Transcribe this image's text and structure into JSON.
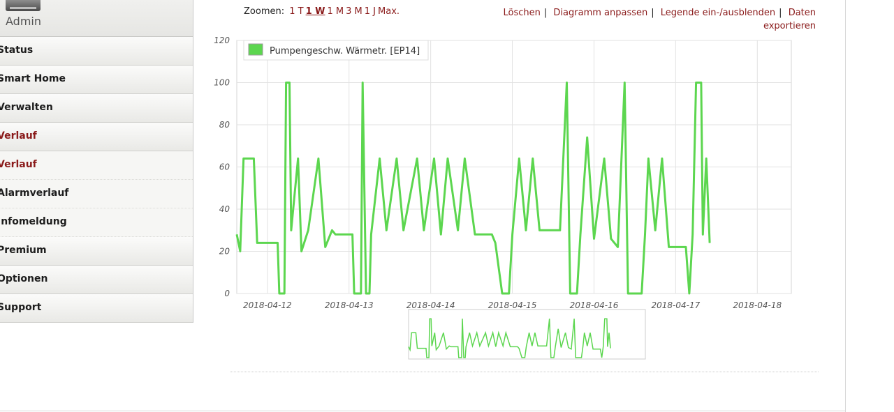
{
  "user": {
    "name": "Admin"
  },
  "nav": {
    "items": [
      {
        "label": "Status",
        "type": "main",
        "active": false
      },
      {
        "label": "Smart Home",
        "type": "main",
        "active": false
      },
      {
        "label": "Verwalten",
        "type": "main",
        "active": false
      },
      {
        "label": "Verlauf",
        "type": "main",
        "active": true
      },
      {
        "label": "Verlauf",
        "type": "sub",
        "active": true
      },
      {
        "label": "Alarmverlauf",
        "type": "sub",
        "active": false
      },
      {
        "label": "Infomeldung",
        "type": "sub",
        "active": false
      },
      {
        "label": "Premium",
        "type": "main",
        "active": false
      },
      {
        "label": "Optionen",
        "type": "main",
        "active": false
      },
      {
        "label": "Support",
        "type": "main",
        "active": false
      }
    ]
  },
  "zoom": {
    "label": "Zoomen:",
    "options": [
      "1 T",
      "1 W",
      "1 M",
      "3 M",
      "1 J",
      "Max."
    ],
    "selected": "1 W"
  },
  "actions": {
    "delete": "Löschen",
    "adjust": "Diagramm anpassen",
    "legend_toggle": "Legende ein-/ausblenden",
    "export": "Daten exportieren"
  },
  "colors": {
    "series": "#5cd64f",
    "link": "#8a1a1a"
  },
  "chart_data": {
    "type": "line",
    "title": "",
    "xlabel": "",
    "ylabel": "",
    "ylim": [
      0,
      120
    ],
    "yticks": [
      0,
      20,
      40,
      60,
      80,
      100,
      120
    ],
    "xlim": [
      "2018-04-11 15:00",
      "2018-04-18 10:00"
    ],
    "xticks": [
      "2018-04-12",
      "2018-04-13",
      "2018-04-14",
      "2018-04-15",
      "2018-04-16",
      "2018-04-17",
      "2018-04-18"
    ],
    "grid": true,
    "legend": "top-left",
    "series": [
      {
        "name": "Pumpengeschw. Wärmetr. [EP14]",
        "points": [
          [
            "2018-04-11 15:00",
            28
          ],
          [
            "2018-04-11 16:00",
            20
          ],
          [
            "2018-04-11 17:00",
            64
          ],
          [
            "2018-04-11 20:00",
            64
          ],
          [
            "2018-04-11 21:00",
            24
          ],
          [
            "2018-04-12 03:00",
            24
          ],
          [
            "2018-04-12 03:30",
            0
          ],
          [
            "2018-04-12 05:00",
            0
          ],
          [
            "2018-04-12 05:30",
            100
          ],
          [
            "2018-04-12 06:30",
            100
          ],
          [
            "2018-04-12 07:00",
            30
          ],
          [
            "2018-04-12 09:00",
            64
          ],
          [
            "2018-04-12 10:00",
            20
          ],
          [
            "2018-04-12 12:00",
            30
          ],
          [
            "2018-04-12 15:00",
            64
          ],
          [
            "2018-04-12 17:00",
            22
          ],
          [
            "2018-04-12 19:00",
            30
          ],
          [
            "2018-04-12 20:00",
            28
          ],
          [
            "2018-04-13 01:00",
            28
          ],
          [
            "2018-04-13 01:30",
            0
          ],
          [
            "2018-04-13 03:30",
            0
          ],
          [
            "2018-04-13 04:00",
            100
          ],
          [
            "2018-04-13 05:00",
            0
          ],
          [
            "2018-04-13 06:00",
            0
          ],
          [
            "2018-04-13 06:30",
            28
          ],
          [
            "2018-04-13 09:00",
            64
          ],
          [
            "2018-04-13 11:00",
            30
          ],
          [
            "2018-04-13 14:00",
            64
          ],
          [
            "2018-04-13 16:00",
            30
          ],
          [
            "2018-04-13 20:00",
            64
          ],
          [
            "2018-04-13 22:00",
            30
          ],
          [
            "2018-04-14 01:00",
            64
          ],
          [
            "2018-04-14 03:00",
            28
          ],
          [
            "2018-04-14 05:00",
            64
          ],
          [
            "2018-04-14 08:00",
            30
          ],
          [
            "2018-04-14 10:00",
            64
          ],
          [
            "2018-04-14 13:00",
            28
          ],
          [
            "2018-04-14 18:00",
            28
          ],
          [
            "2018-04-14 19:00",
            24
          ],
          [
            "2018-04-14 21:00",
            0
          ],
          [
            "2018-04-14 23:00",
            0
          ],
          [
            "2018-04-15 00:00",
            28
          ],
          [
            "2018-04-15 02:00",
            64
          ],
          [
            "2018-04-15 04:00",
            30
          ],
          [
            "2018-04-15 06:00",
            64
          ],
          [
            "2018-04-15 08:00",
            30
          ],
          [
            "2018-04-15 14:00",
            30
          ],
          [
            "2018-04-15 16:00",
            100
          ],
          [
            "2018-04-15 17:00",
            0
          ],
          [
            "2018-04-15 19:00",
            0
          ],
          [
            "2018-04-15 20:00",
            28
          ],
          [
            "2018-04-15 22:00",
            74
          ],
          [
            "2018-04-16 00:00",
            26
          ],
          [
            "2018-04-16 03:00",
            64
          ],
          [
            "2018-04-16 05:00",
            26
          ],
          [
            "2018-04-16 07:00",
            22
          ],
          [
            "2018-04-16 09:00",
            100
          ],
          [
            "2018-04-16 10:00",
            0
          ],
          [
            "2018-04-16 14:00",
            0
          ],
          [
            "2018-04-16 15:00",
            28
          ],
          [
            "2018-04-16 16:00",
            64
          ],
          [
            "2018-04-16 18:00",
            30
          ],
          [
            "2018-04-16 20:00",
            64
          ],
          [
            "2018-04-16 22:00",
            22
          ],
          [
            "2018-04-17 03:00",
            22
          ],
          [
            "2018-04-17 04:00",
            0
          ],
          [
            "2018-04-17 05:00",
            28
          ],
          [
            "2018-04-17 06:00",
            100
          ],
          [
            "2018-04-17 07:30",
            100
          ],
          [
            "2018-04-17 08:00",
            28
          ],
          [
            "2018-04-17 09:00",
            64
          ],
          [
            "2018-04-17 10:00",
            24
          ]
        ]
      }
    ]
  }
}
